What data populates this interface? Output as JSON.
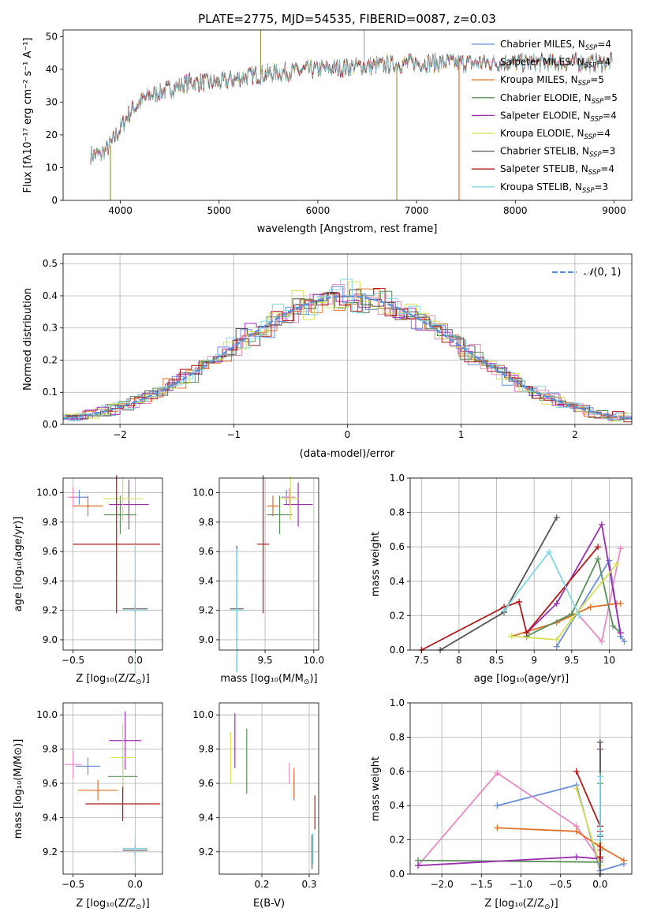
{
  "figure_title": "PLATE=2775, MJD=54535, FIBERID=0087, z=0.03",
  "colors": {
    "Chabrier MILES": "#6a8fd6",
    "Salpeter MILES": "#e78ac3",
    "Kroupa MILES": "#e0702a",
    "Chabrier ELODIE": "#5a8f5a",
    "Salpeter ELODIE": "#9a2fb0",
    "Kroupa ELODIE": "#d8e055",
    "Chabrier STELIB": "#555555",
    "Salpeter STELIB": "#b01a1a",
    "Kroupa STELIB": "#82d8e0"
  },
  "chart_data": [
    {
      "id": "spectrum",
      "type": "line",
      "title": "PLATE=2775, MJD=54535, FIBERID=0087, z=0.03",
      "xlabel": "wavelength [Angstrom, rest frame]",
      "ylabel": "Flux [fλ10⁻¹⁷ erg cm⁻² s⁻¹ A⁻¹]",
      "xlim": [
        3420,
        9180
      ],
      "ylim": [
        0,
        52
      ],
      "xticks": [
        4000,
        5000,
        6000,
        7000,
        8000,
        9000
      ],
      "yticks": [
        0,
        10,
        20,
        30,
        40,
        50
      ],
      "grid": false,
      "legend": "top-right",
      "series": [
        {
          "name": "Chabrier MILES, N_SSP=4",
          "legend_main": "Chabrier MILES, N",
          "legend_sub": "SSP",
          "legend_tail": "=4",
          "color": "#6a8fd6"
        },
        {
          "name": "Salpeter MILES, N_SSP=4",
          "legend_main": "Salpeter MILES, N",
          "legend_sub": "SSP",
          "legend_tail": "=4",
          "color": "#e78ac3"
        },
        {
          "name": "Kroupa MILES, N_SSP=5",
          "legend_main": "Kroupa MILES, N",
          "legend_sub": "SSP",
          "legend_tail": "=5",
          "color": "#e0702a"
        },
        {
          "name": "Chabrier ELODIE, N_SSP=5",
          "legend_main": "Chabrier ELODIE, N",
          "legend_sub": "SSP",
          "legend_tail": "=5",
          "color": "#5a8f5a"
        },
        {
          "name": "Salpeter ELODIE, N_SSP=4",
          "legend_main": "Salpeter ELODIE, N",
          "legend_sub": "SSP",
          "legend_tail": "=4",
          "color": "#9a2fb0"
        },
        {
          "name": "Kroupa ELODIE, N_SSP=4",
          "legend_main": "Kroupa ELODIE, N",
          "legend_sub": "SSP",
          "legend_tail": "=4",
          "color": "#d8e055"
        },
        {
          "name": "Chabrier STELIB, N_SSP=3",
          "legend_main": "Chabrier STELIB, N",
          "legend_sub": "SSP",
          "legend_tail": "=3",
          "color": "#555555"
        },
        {
          "name": "Salpeter STELIB, N_SSP=4",
          "legend_main": "Salpeter STELIB, N",
          "legend_sub": "SSP",
          "legend_tail": "=4",
          "color": "#b01a1a"
        },
        {
          "name": "Kroupa STELIB, N_SSP=3",
          "legend_main": "Kroupa STELIB, N",
          "legend_sub": "SSP",
          "legend_tail": "=3",
          "color": "#82d8e0"
        }
      ],
      "data_xrange": [
        3700,
        8980
      ],
      "continuum": [
        [
          3700,
          14
        ],
        [
          3800,
          14
        ],
        [
          3900,
          17
        ],
        [
          4000,
          22
        ],
        [
          4100,
          27
        ],
        [
          4200,
          30
        ],
        [
          4300,
          32
        ],
        [
          4400,
          33
        ],
        [
          4500,
          34
        ],
        [
          4700,
          36
        ],
        [
          5000,
          36
        ],
        [
          5300,
          38
        ],
        [
          5600,
          39
        ],
        [
          6000,
          40
        ],
        [
          6500,
          41
        ],
        [
          7000,
          42
        ],
        [
          7500,
          42
        ],
        [
          8000,
          42
        ],
        [
          8500,
          42
        ],
        [
          8900,
          42
        ]
      ],
      "spikes": [
        [
          3900,
          0
        ],
        [
          5420,
          52
        ],
        [
          6470,
          52
        ],
        [
          6800,
          0
        ],
        [
          7430,
          0
        ]
      ]
    },
    {
      "id": "residuals",
      "type": "step-histogram",
      "xlabel": "(data-model)/error",
      "ylabel": "Normed distribution",
      "xlim": [
        -2.5,
        2.5
      ],
      "ylim": [
        0,
        0.53
      ],
      "xticks": [
        -2,
        -1,
        0,
        1,
        2
      ],
      "xtick_labels": [
        "−2",
        "−1",
        "0",
        "1",
        "2"
      ],
      "yticks": [
        0.0,
        0.1,
        0.2,
        0.3,
        0.4,
        0.5
      ],
      "grid": true,
      "legend": "top-right",
      "reference_label_prefix": "𝒩",
      "reference_label_args": "(0, 1)",
      "reference_color": "#5b8fd6",
      "bin_width": 0.1
    },
    {
      "id": "age-vs-Z",
      "type": "errorbar",
      "xlabel_main": "Z [log₁₀(Z/Z",
      "xlabel_sun": "⊙",
      "xlabel_tail": ")]",
      "ylabel": "age  [log₁₀(age/yr)]",
      "xlim": [
        -0.58,
        0.22
      ],
      "ylim": [
        8.93,
        10.1
      ],
      "xticks": [
        -0.5,
        0.0
      ],
      "xtick_labels": [
        "−0.5",
        "0.0"
      ],
      "yticks": [
        9.0,
        9.2,
        9.4,
        9.6,
        9.8,
        10.0
      ],
      "points": [
        {
          "model": "Chabrier MILES",
          "x": -0.45,
          "y": 9.97,
          "xerr": 0.07,
          "yerr": 0.05
        },
        {
          "model": "Salpeter MILES",
          "x": -0.5,
          "y": 9.97,
          "xerr": 0.04,
          "yerr": 0.07
        },
        {
          "model": "Kroupa MILES",
          "x": -0.38,
          "y": 9.91,
          "xerr": 0.12,
          "yerr": 0.07
        },
        {
          "model": "Chabrier ELODIE",
          "x": -0.12,
          "y": 9.85,
          "xerr": 0.13,
          "yerr": 0.13
        },
        {
          "model": "Salpeter ELODIE",
          "x": -0.05,
          "y": 9.92,
          "xerr": 0.16,
          "yerr": 0.17
        },
        {
          "model": "Kroupa ELODIE",
          "x": -0.1,
          "y": 9.96,
          "xerr": 0.16,
          "yerr": 0.15
        },
        {
          "model": "Chabrier STELIB",
          "x": 0.0,
          "y": 9.21,
          "xerr": 0.1,
          "yerr": 0.03
        },
        {
          "model": "Salpeter STELIB",
          "x": -0.15,
          "y": 9.65,
          "xerr": 0.35,
          "yerr": 0.47
        },
        {
          "model": "Kroupa STELIB",
          "x": 0.0,
          "y": 9.2,
          "xerr": 0.1,
          "yerr": 0.45
        }
      ]
    },
    {
      "id": "age-vs-mass",
      "type": "errorbar",
      "xlabel_main": "mass [log₁₀(M/M",
      "xlabel_sun": "⊙",
      "xlabel_tail": ")]",
      "xlim": [
        9.03,
        10.05
      ],
      "ylim": [
        8.93,
        10.1
      ],
      "xticks": [
        9.5,
        10.0
      ],
      "xtick_labels": [
        "9.5",
        "10.0"
      ],
      "yticks": [
        9.0,
        9.2,
        9.4,
        9.6,
        9.8,
        10.0
      ],
      "points": [
        {
          "model": "Chabrier MILES",
          "x": 9.72,
          "y": 9.97,
          "xerr": 0.05,
          "yerr": 0.05
        },
        {
          "model": "Salpeter MILES",
          "x": 9.75,
          "y": 9.97,
          "xerr": 0.06,
          "yerr": 0.06
        },
        {
          "model": "Kroupa MILES",
          "x": 9.58,
          "y": 9.91,
          "xerr": 0.06,
          "yerr": 0.07
        },
        {
          "model": "Chabrier ELODIE",
          "x": 9.65,
          "y": 9.85,
          "xerr": 0.13,
          "yerr": 0.13
        },
        {
          "model": "Salpeter ELODIE",
          "x": 9.84,
          "y": 9.92,
          "xerr": 0.15,
          "yerr": 0.15
        },
        {
          "model": "Kroupa ELODIE",
          "x": 9.76,
          "y": 9.96,
          "xerr": 0.1,
          "yerr": 0.15
        },
        {
          "model": "Chabrier STELIB",
          "x": 9.21,
          "y": 9.21,
          "xerr": 0.07,
          "yerr": 0.43
        },
        {
          "model": "Salpeter STELIB",
          "x": 9.48,
          "y": 9.65,
          "xerr": 0.06,
          "yerr": 0.47
        },
        {
          "model": "Kroupa STELIB",
          "x": 9.21,
          "y": 9.2,
          "xerr": 0.07,
          "yerr": 0.42
        }
      ]
    },
    {
      "id": "massweight-vs-age",
      "type": "line",
      "xlabel": "age  [log₁₀(age/yr)]",
      "ylabel": "mass weight",
      "xlim": [
        7.35,
        10.3
      ],
      "ylim": [
        0,
        1
      ],
      "xticks": [
        7.5,
        8.0,
        8.5,
        9.0,
        9.5,
        10.0
      ],
      "yticks": [
        0.0,
        0.2,
        0.4,
        0.6,
        0.8,
        1.0
      ],
      "series": [
        {
          "model": "Chabrier MILES",
          "points": [
            [
              9.3,
              0.02
            ],
            [
              10.0,
              0.52
            ],
            [
              10.15,
              0.08
            ],
            [
              10.2,
              0.05
            ]
          ]
        },
        {
          "model": "Salpeter MILES",
          "points": [
            [
              9.6,
              0.2
            ],
            [
              9.9,
              0.05
            ],
            [
              10.15,
              0.59
            ]
          ]
        },
        {
          "model": "Kroupa MILES",
          "points": [
            [
              8.7,
              0.08
            ],
            [
              9.3,
              0.16
            ],
            [
              9.75,
              0.25
            ],
            [
              10.1,
              0.27
            ],
            [
              10.15,
              0.27
            ]
          ]
        },
        {
          "model": "Chabrier ELODIE",
          "points": [
            [
              8.9,
              0.08
            ],
            [
              9.5,
              0.21
            ],
            [
              9.85,
              0.53
            ],
            [
              10.05,
              0.14
            ],
            [
              10.15,
              0.1
            ]
          ]
        },
        {
          "model": "Salpeter ELODIE",
          "points": [
            [
              8.9,
              0.1
            ],
            [
              9.3,
              0.27
            ],
            [
              9.9,
              0.73
            ],
            [
              10.15,
              0.1
            ]
          ]
        },
        {
          "model": "Kroupa ELODIE",
          "points": [
            [
              8.7,
              0.08
            ],
            [
              9.3,
              0.06
            ],
            [
              9.5,
              0.18
            ],
            [
              10.1,
              0.5
            ]
          ]
        },
        {
          "model": "Chabrier STELIB",
          "points": [
            [
              7.75,
              0.0
            ],
            [
              8.6,
              0.22
            ],
            [
              9.3,
              0.77
            ]
          ]
        },
        {
          "model": "Salpeter STELIB",
          "points": [
            [
              7.5,
              0.0
            ],
            [
              8.6,
              0.25
            ],
            [
              8.8,
              0.28
            ],
            [
              8.9,
              0.1
            ],
            [
              9.85,
              0.6
            ]
          ]
        },
        {
          "model": "Kroupa STELIB",
          "points": [
            [
              8.6,
              0.23
            ],
            [
              9.2,
              0.57
            ],
            [
              9.6,
              0.2
            ]
          ]
        }
      ]
    },
    {
      "id": "mass-vs-Z",
      "type": "errorbar",
      "xlabel_main": "Z [log₁₀(Z/Z",
      "xlabel_sun": "⊙",
      "xlabel_tail": ")]",
      "ylabel": "mass [log₁₀(M/M⊙)]",
      "xlim": [
        -0.58,
        0.22
      ],
      "ylim": [
        9.07,
        10.07
      ],
      "xticks": [
        -0.5,
        0.0
      ],
      "xtick_labels": [
        "−0.5",
        "0.0"
      ],
      "yticks": [
        9.2,
        9.4,
        9.6,
        9.8,
        10.0
      ],
      "points": [
        {
          "model": "Chabrier MILES",
          "x": -0.38,
          "y": 9.7,
          "xerr": 0.1,
          "yerr": 0.05
        },
        {
          "model": "Salpeter MILES",
          "x": -0.5,
          "y": 9.71,
          "xerr": 0.07,
          "yerr": 0.08
        },
        {
          "model": "Kroupa MILES",
          "x": -0.3,
          "y": 9.56,
          "xerr": 0.16,
          "yerr": 0.06
        },
        {
          "model": "Chabrier ELODIE",
          "x": -0.1,
          "y": 9.64,
          "xerr": 0.12,
          "yerr": 0.13
        },
        {
          "model": "Salpeter ELODIE",
          "x": -0.08,
          "y": 9.85,
          "xerr": 0.13,
          "yerr": 0.17
        },
        {
          "model": "Kroupa ELODIE",
          "x": -0.1,
          "y": 9.75,
          "xerr": 0.1,
          "yerr": 0.2
        },
        {
          "model": "Chabrier STELIB",
          "x": 0.0,
          "y": 9.21,
          "xerr": 0.1,
          "yerr": 0.03
        },
        {
          "model": "Salpeter STELIB",
          "x": -0.1,
          "y": 9.48,
          "xerr": 0.3,
          "yerr": 0.1
        },
        {
          "model": "Kroupa STELIB",
          "x": 0.0,
          "y": 9.22,
          "xerr": 0.1,
          "yerr": 0.08
        }
      ]
    },
    {
      "id": "mass-vs-EBV",
      "type": "errorbar",
      "xlabel": "E(B-V)",
      "xlim": [
        0.11,
        0.32
      ],
      "ylim": [
        9.07,
        10.07
      ],
      "xticks": [
        0.2,
        0.3
      ],
      "xtick_labels": [
        "0.2",
        "0.3"
      ],
      "yticks": [
        9.2,
        9.4,
        9.6,
        9.8,
        10.0
      ],
      "points": [
        {
          "model": "Chabrier MILES",
          "x": 0.268,
          "y": 9.58,
          "xerr": 0,
          "yerr": 0.08
        },
        {
          "model": "Salpeter MILES",
          "x": 0.258,
          "y": 9.66,
          "xerr": 0,
          "yerr": 0.06
        },
        {
          "model": "Kroupa MILES",
          "x": 0.268,
          "y": 9.6,
          "xerr": 0,
          "yerr": 0.09
        },
        {
          "model": "Chabrier ELODIE",
          "x": 0.168,
          "y": 9.73,
          "xerr": 0,
          "yerr": 0.19
        },
        {
          "model": "Salpeter ELODIE",
          "x": 0.143,
          "y": 9.85,
          "xerr": 0,
          "yerr": 0.16
        },
        {
          "model": "Kroupa ELODIE",
          "x": 0.134,
          "y": 9.75,
          "xerr": 0,
          "yerr": 0.15
        },
        {
          "model": "Chabrier STELIB",
          "x": 0.306,
          "y": 9.2,
          "xerr": 0,
          "yerr": 0.1
        },
        {
          "model": "Salpeter STELIB",
          "x": 0.312,
          "y": 9.43,
          "xerr": 0,
          "yerr": 0.1
        },
        {
          "model": "Kroupa STELIB",
          "x": 0.308,
          "y": 9.22,
          "xerr": 0,
          "yerr": 0.09
        }
      ]
    },
    {
      "id": "massweight-vs-Z",
      "type": "line",
      "xlabel_main": "Z [log₁₀(Z/Z",
      "xlabel_sun": "⊙",
      "xlabel_tail": ")]",
      "ylabel": "mass weight",
      "xlim": [
        -2.4,
        0.4
      ],
      "ylim": [
        0,
        1
      ],
      "xticks": [
        -2.0,
        -1.5,
        -1.0,
        -0.5,
        0.0
      ],
      "xtick_labels": [
        "−2.0",
        "−1.5",
        "−1.0",
        "−0.5",
        "0.0"
      ],
      "yticks": [
        0.0,
        0.2,
        0.4,
        0.6,
        0.8,
        1.0
      ],
      "series": [
        {
          "model": "Chabrier MILES",
          "points": [
            [
              -1.3,
              0.4
            ],
            [
              -0.3,
              0.52
            ],
            [
              0.0,
              0.02
            ],
            [
              0.3,
              0.06
            ]
          ]
        },
        {
          "model": "Salpeter MILES",
          "points": [
            [
              -2.3,
              0.05
            ],
            [
              -1.3,
              0.59
            ],
            [
              -0.3,
              0.28
            ],
            [
              0.0,
              0.08
            ]
          ]
        },
        {
          "model": "Kroupa MILES",
          "points": [
            [
              -1.3,
              0.27
            ],
            [
              -0.3,
              0.25
            ],
            [
              0.0,
              0.16
            ],
            [
              0.3,
              0.08
            ]
          ]
        },
        {
          "model": "Chabrier ELODIE",
          "points": [
            [
              -2.3,
              0.08
            ],
            [
              0.0,
              0.07
            ],
            [
              0.0,
              0.53
            ],
            [
              0.0,
              0.1
            ],
            [
              0.0,
              0.14
            ]
          ]
        },
        {
          "model": "Salpeter ELODIE",
          "points": [
            [
              -2.3,
              0.05
            ],
            [
              -0.3,
              0.1
            ],
            [
              0.0,
              0.09
            ],
            [
              0.0,
              0.73
            ]
          ]
        },
        {
          "model": "Kroupa ELODIE",
          "points": [
            [
              -0.3,
              0.5
            ],
            [
              0.0,
              0.05
            ],
            [
              0.0,
              0.18
            ]
          ]
        },
        {
          "model": "Chabrier STELIB",
          "points": [
            [
              0.0,
              0.0
            ],
            [
              0.0,
              0.77
            ],
            [
              0.0,
              0.22
            ]
          ]
        },
        {
          "model": "Salpeter STELIB",
          "points": [
            [
              -0.3,
              0.6
            ],
            [
              0.0,
              0.28
            ],
            [
              0.0,
              0.1
            ],
            [
              0.0,
              0.25
            ]
          ]
        },
        {
          "model": "Kroupa STELIB",
          "points": [
            [
              0.0,
              0.57
            ],
            [
              0.0,
              0.23
            ],
            [
              0.0,
              0.2
            ]
          ]
        }
      ]
    }
  ]
}
